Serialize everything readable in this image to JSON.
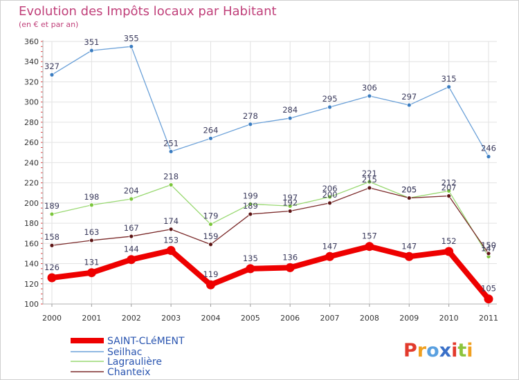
{
  "chart_data": {
    "type": "line",
    "title": "Evolution des Impôts locaux par Habitant",
    "subtitle": "(en € et par an)",
    "xlabel": "",
    "ylabel": "",
    "categories": [
      "2000",
      "2001",
      "2002",
      "2003",
      "2004",
      "2005",
      "2006",
      "2007",
      "2008",
      "2009",
      "2010",
      "2011"
    ],
    "ylim": [
      100,
      360
    ],
    "yticks": [
      "100",
      "120",
      "140",
      "160",
      "180",
      "200",
      "220",
      "240",
      "260",
      "280",
      "300",
      "320",
      "340",
      "360"
    ],
    "grid": true,
    "legend_position": "bottom-left",
    "series": [
      {
        "name": "Seilhac",
        "color": "#6aa0d8",
        "marker": "#3a7cc0",
        "values": [
          327,
          351,
          355,
          251,
          264,
          278,
          284,
          295,
          306,
          297,
          315,
          246
        ]
      },
      {
        "name": "Lagraulière",
        "color": "#98d870",
        "marker": "#7cc63c",
        "values": [
          189,
          198,
          204,
          218,
          179,
          199,
          197,
          206,
          221,
          205,
          212,
          147
        ]
      },
      {
        "name": "Chanteix",
        "color": "#7a2828",
        "marker": "#5c1414",
        "values": [
          158,
          163,
          167,
          174,
          159,
          189,
          192,
          200,
          215,
          205,
          207,
          150
        ]
      },
      {
        "name": "SAINT-CLéMENT",
        "color": "#ee0000",
        "marker": "#ee0000",
        "values": [
          126,
          131,
          144,
          153,
          119,
          135,
          136,
          147,
          157,
          147,
          152,
          105
        ]
      }
    ],
    "legend_entries": [
      "SAINT-CLéMENT",
      "Seilhac",
      "Lagraulière",
      "Chanteix"
    ]
  },
  "brand": {
    "letters": [
      "P",
      "r",
      "o",
      "x",
      "i",
      "t",
      "i"
    ],
    "colors": [
      "#e23a2c",
      "#f0a020",
      "#5aa0e0",
      "#3a70c8",
      "#e23a2c",
      "#8cc43c",
      "#f0a020"
    ]
  }
}
